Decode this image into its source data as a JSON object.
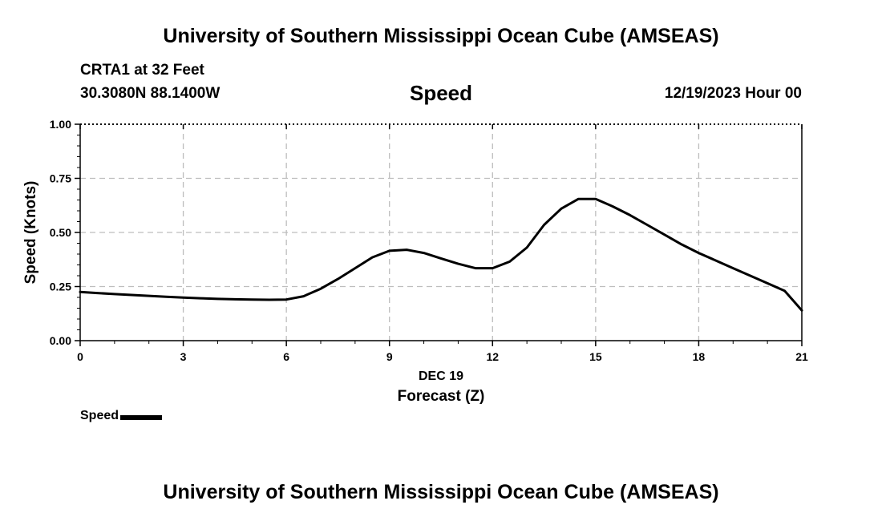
{
  "header": {
    "title": "University of Southern Mississippi Ocean Cube (AMSEAS)",
    "station": "CRTA1 at 32 Feet",
    "coordinates": "30.3080N  88.1400W",
    "datetime": "12/19/2023 Hour 00"
  },
  "footer": {
    "title": "University of Southern Mississippi Ocean Cube (AMSEAS)"
  },
  "legend": {
    "label": "Speed",
    "color": "#000000"
  },
  "chart_data": {
    "type": "line",
    "title": "Speed",
    "xlabel": "Forecast (Z)",
    "xsublabel": "DEC 19",
    "ylabel": "Speed (Knots)",
    "xlim": [
      0,
      21
    ],
    "ylim": [
      0,
      1
    ],
    "xticks": [
      0,
      3,
      6,
      9,
      12,
      15,
      18,
      21
    ],
    "yticks": [
      0.0,
      0.25,
      0.5,
      0.75,
      1.0
    ],
    "ytick_labels": [
      "0.00",
      "0.25",
      "0.50",
      "0.75",
      "1.00"
    ],
    "grid": true,
    "series": [
      {
        "name": "Speed",
        "color": "#000000",
        "x": [
          0,
          0.5,
          1,
          1.5,
          2,
          2.5,
          3,
          3.5,
          4,
          4.5,
          5,
          5.5,
          6,
          6.5,
          7,
          7.5,
          8,
          8.5,
          9,
          9.5,
          10,
          10.5,
          11,
          11.5,
          12,
          12.5,
          13,
          13.5,
          14,
          14.5,
          15,
          15.5,
          16,
          16.5,
          17,
          17.5,
          18,
          18.5,
          19,
          19.5,
          20,
          20.5,
          21
        ],
        "y": [
          0.225,
          0.22,
          0.215,
          0.211,
          0.207,
          0.203,
          0.199,
          0.196,
          0.193,
          0.191,
          0.19,
          0.189,
          0.19,
          0.205,
          0.24,
          0.285,
          0.335,
          0.385,
          0.415,
          0.42,
          0.405,
          0.38,
          0.355,
          0.335,
          0.335,
          0.365,
          0.43,
          0.535,
          0.61,
          0.655,
          0.655,
          0.62,
          0.58,
          0.535,
          0.49,
          0.445,
          0.405,
          0.37,
          0.335,
          0.3,
          0.265,
          0.23,
          0.14
        ]
      }
    ]
  }
}
